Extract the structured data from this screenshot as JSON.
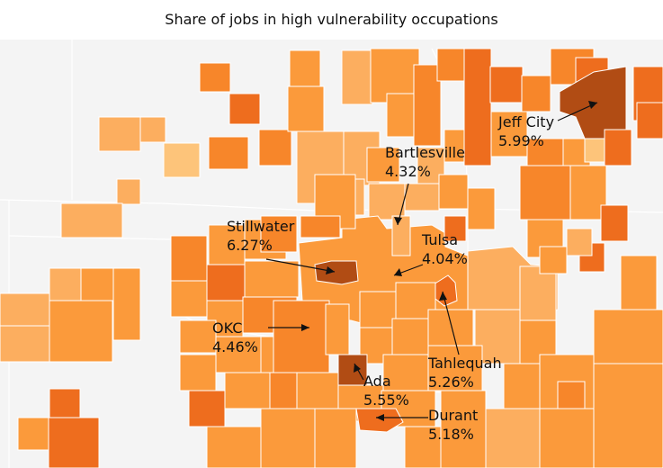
{
  "title": "Share of jobs in high vulnerability occupations",
  "palette": {
    "background": "#f4f4f4",
    "very_light": "#fdc47a",
    "light": "#fcae5f",
    "medium": "#fb9a3b",
    "medium_dark": "#f7862a",
    "dark": "#ee6d1e",
    "very_dark": "#b14c14"
  },
  "cities": [
    {
      "name": "Bartlesville",
      "value": "4.32%"
    },
    {
      "name": "Jeff City",
      "value": "5.99%"
    },
    {
      "name": "Stillwater",
      "value": "6.27%"
    },
    {
      "name": "Tulsa",
      "value": "4.04%"
    },
    {
      "name": "OKC",
      "value": "4.46%"
    },
    {
      "name": "Tahlequah",
      "value": "5.26%"
    },
    {
      "name": "Ada",
      "value": "5.55%"
    },
    {
      "name": "Durant",
      "value": "5.18%"
    }
  ]
}
